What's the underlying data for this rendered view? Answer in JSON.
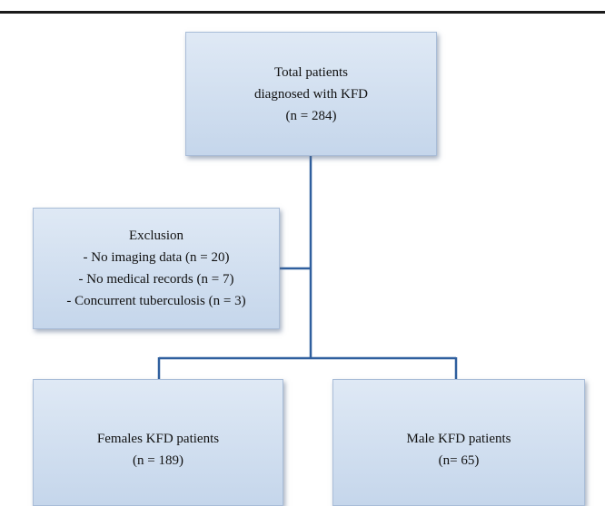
{
  "boxes": {
    "total": {
      "lines": [
        "Total patients",
        "diagnosed with KFD",
        "(n = 284)"
      ]
    },
    "exclusion": {
      "lines": [
        "Exclusion",
        "- No imaging  data (n = 20)",
        "- No medical records (n = 7)",
        "- Concurrent tuberculosis (n = 3)"
      ]
    },
    "female": {
      "lines": [
        "Females KFD patients",
        "(n = 189)"
      ]
    },
    "male": {
      "lines": [
        "Male KFD patients",
        "(n= 65)"
      ]
    }
  },
  "colors": {
    "box_fill_top": "#dfe9f5",
    "box_fill_bottom": "#c5d6eb",
    "box_border": "#a9bdd8",
    "connector": "#2f5f9e",
    "rule": "#1a1a1a"
  }
}
